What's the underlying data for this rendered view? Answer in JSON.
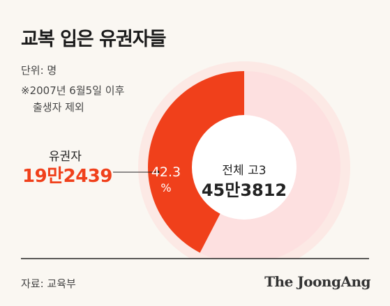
{
  "title": "교복 입은 유권자들",
  "unit": "단위: 명",
  "note_line1": "※2007년 6월5일 이후",
  "note_line2": "출생자 제외",
  "source": "자료: 교육부",
  "logo": "The JoongAng",
  "colors": {
    "accent": "#f0401b",
    "ring_bg": "#fde0e0",
    "outer_bg": "#fce9e5",
    "hole": "#ffffff",
    "baseline": "#222222"
  },
  "chart_data": {
    "type": "pie",
    "style": "donut",
    "slices": [
      {
        "label": "유권자",
        "value": 192439,
        "value_text": "19만2439",
        "percent_text": "42.3",
        "percent_symbol": "%"
      },
      {
        "label": "전체 고3",
        "value": 453812,
        "value_text": "45만3812",
        "is_total": true
      }
    ]
  }
}
